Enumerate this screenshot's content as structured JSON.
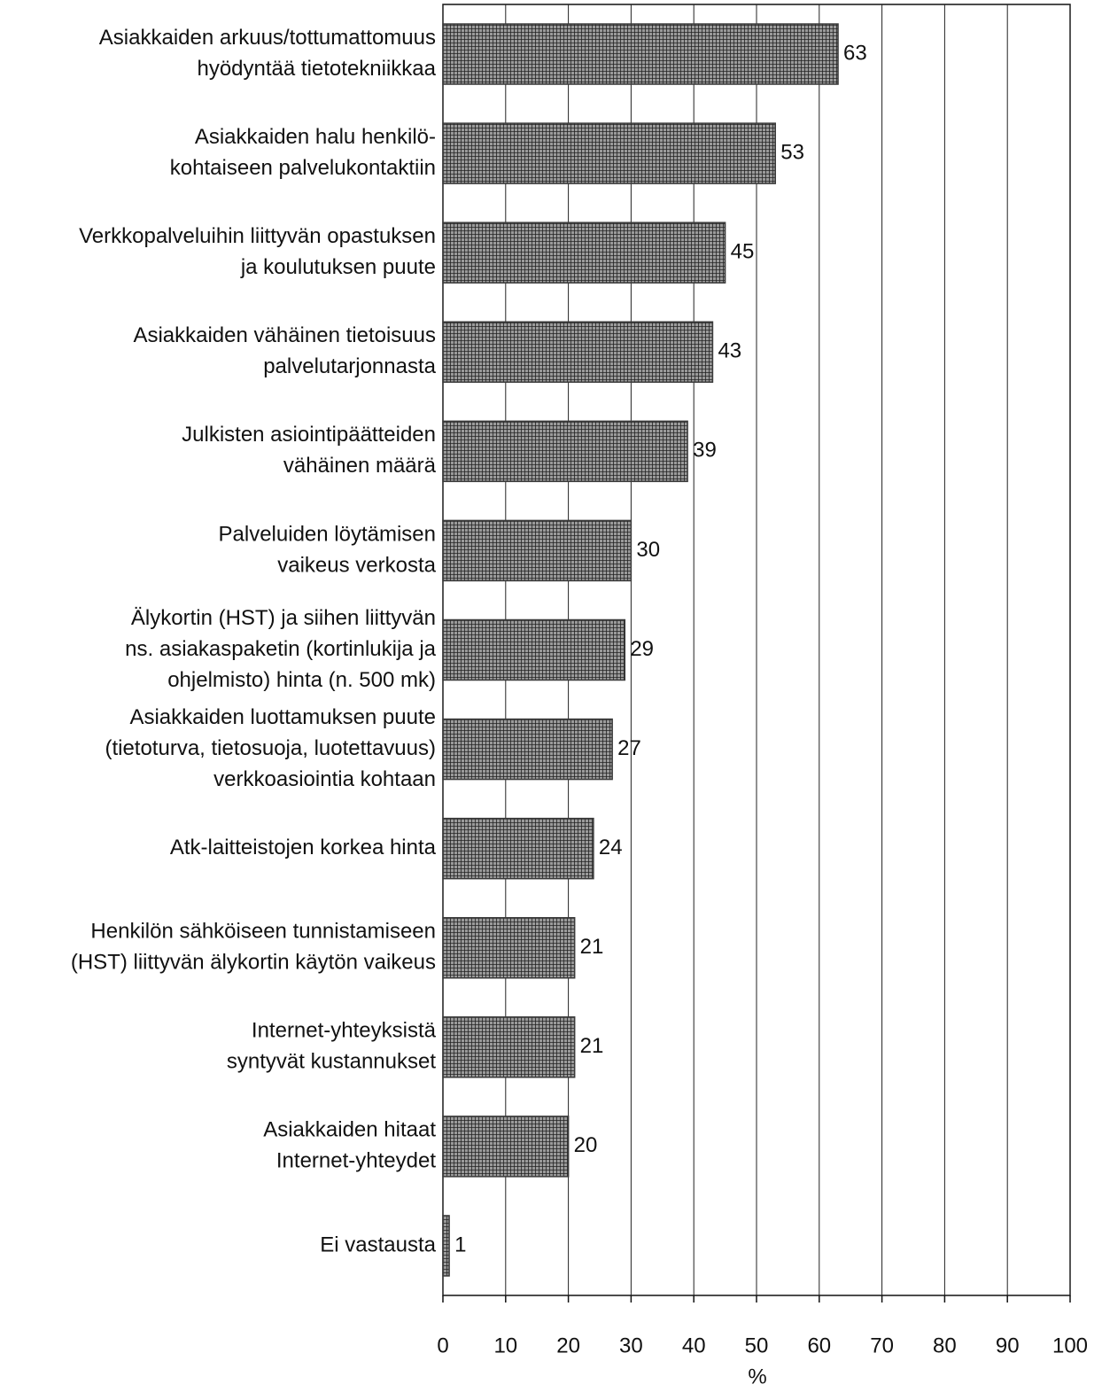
{
  "chart_data": {
    "type": "bar",
    "orientation": "horizontal",
    "categories": [
      [
        "Asiakkaiden arkuus/tottumattomuus",
        "hyödyntää tietotekniikkaa"
      ],
      [
        "Asiakkaiden halu henkilö-",
        "kohtaiseen palvelukontaktiin"
      ],
      [
        "Verkkopalveluihin liittyvän opastuksen",
        "ja koulutuksen puute"
      ],
      [
        "Asiakkaiden vähäinen tietoisuus",
        "palvelutarjonnasta"
      ],
      [
        "Julkisten asiointipäätteiden",
        "vähäinen määrä"
      ],
      [
        "Palveluiden löytämisen",
        "vaikeus verkosta"
      ],
      [
        "Älykortin (HST) ja siihen liittyvän",
        "ns. asiakaspaketin (kortinlukija ja",
        "ohjelmisto) hinta (n. 500 mk)"
      ],
      [
        "Asiakkaiden luottamuksen puute",
        "(tietoturva, tietosuoja, luotettavuus)",
        "verkkoasiointia kohtaan"
      ],
      [
        "Atk-laitteistojen korkea hinta"
      ],
      [
        "Henkilön sähköiseen tunnistamiseen",
        "(HST) liittyvän älykortin käytön vaikeus"
      ],
      [
        "Internet-yhteyksistä",
        "syntyvät kustannukset"
      ],
      [
        "Asiakkaiden hitaat",
        "Internet-yhteydet"
      ],
      [
        "Ei vastausta"
      ]
    ],
    "values": [
      63,
      53,
      45,
      43,
      39,
      30,
      29,
      27,
      24,
      21,
      21,
      20,
      1
    ],
    "color": "#3a3a3a",
    "xlim": [
      0,
      100
    ],
    "xticks": [
      0,
      10,
      20,
      30,
      40,
      50,
      60,
      70,
      80,
      90,
      100
    ],
    "xlabel": "%",
    "grid": true
  }
}
